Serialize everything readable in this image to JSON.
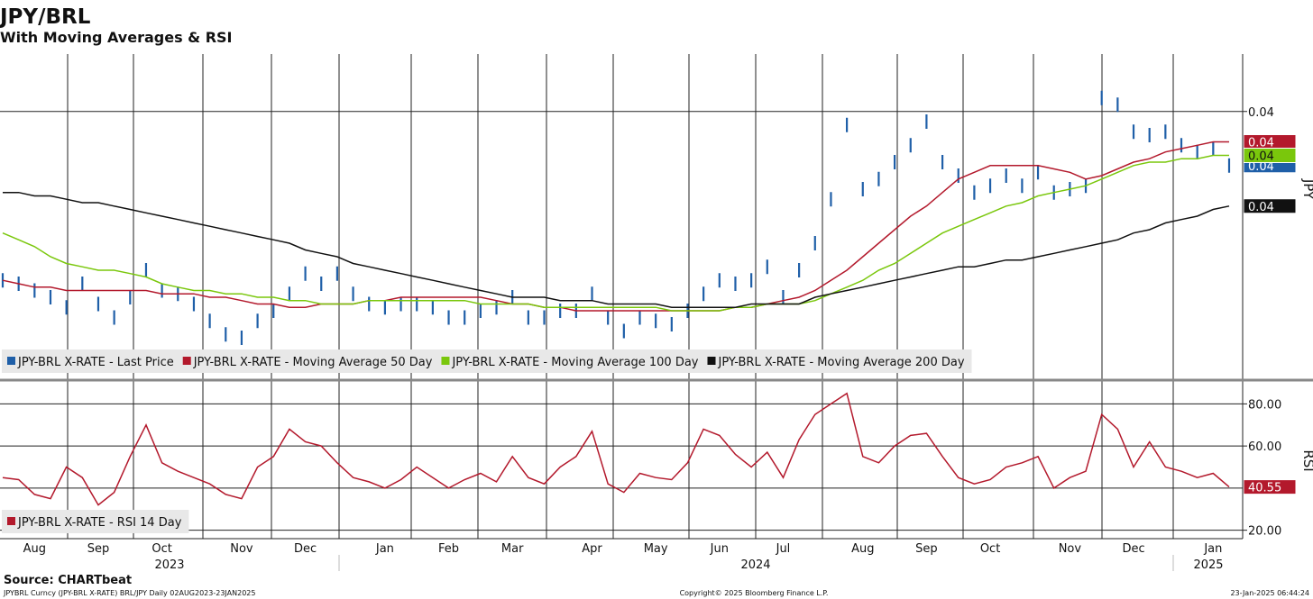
{
  "header": {
    "title": "JPY/BRL",
    "subtitle": "With Moving Averages & RSI"
  },
  "footer": {
    "source": "Source: CHARTbeat",
    "ticker": "JPYBRL Curncy (JPY-BRL X-RATE) BRL/JPY  Daily 02AUG2023-23JAN2025",
    "copyright": "Copyright© 2025 Bloomberg Finance L.P.",
    "timestamp": "23-Jan-2025 06:44:24"
  },
  "chart_data": [
    {
      "type": "line",
      "y_label": "JPY",
      "ylim": [
        0.0321,
        0.0417
      ],
      "yticks": [
        0.04
      ],
      "grid": true,
      "legend": "bottom-left",
      "series": [
        {
          "name": "JPY-BRL X-RATE - Last Price",
          "color": "#1f5fa8",
          "style": "bars",
          "end_label": "0.04",
          "values": [
            0.035,
            0.0349,
            0.0347,
            0.0345,
            0.0342,
            0.0349,
            0.0343,
            0.0339,
            0.0345,
            0.0353,
            0.0347,
            0.0346,
            0.0343,
            0.0338,
            0.0334,
            0.0333,
            0.0338,
            0.0341,
            0.0346,
            0.0352,
            0.0349,
            0.0352,
            0.0346,
            0.0343,
            0.0342,
            0.0343,
            0.0343,
            0.0342,
            0.0339,
            0.0339,
            0.0341,
            0.0342,
            0.0345,
            0.0339,
            0.0339,
            0.0341,
            0.0341,
            0.0346,
            0.0339,
            0.0335,
            0.0339,
            0.0338,
            0.0337,
            0.0341,
            0.0346,
            0.035,
            0.0349,
            0.035,
            0.0354,
            0.0345,
            0.0353,
            0.0361,
            0.0374,
            0.0396,
            0.0377,
            0.038,
            0.0385,
            0.039,
            0.0397,
            0.0385,
            0.0381,
            0.0376,
            0.0378,
            0.0381,
            0.0378,
            0.0382,
            0.0376,
            0.0377,
            0.0378,
            0.0404,
            0.0402,
            0.0394,
            0.0393,
            0.0394,
            0.039,
            0.0388,
            0.0389,
            0.0384
          ]
        },
        {
          "name": "JPY-BRL X-RATE - Moving Average 50 Day",
          "color": "#b3192c",
          "style": "line",
          "end_label": "0.04",
          "values": [
            0.035,
            0.0349,
            0.0348,
            0.0348,
            0.0347,
            0.0347,
            0.0347,
            0.0347,
            0.0347,
            0.0347,
            0.0346,
            0.0346,
            0.0346,
            0.0345,
            0.0345,
            0.0344,
            0.0343,
            0.0343,
            0.0342,
            0.0342,
            0.0343,
            0.0343,
            0.0343,
            0.0344,
            0.0344,
            0.0345,
            0.0345,
            0.0345,
            0.0345,
            0.0345,
            0.0345,
            0.0344,
            0.0343,
            0.0343,
            0.0342,
            0.0342,
            0.0341,
            0.0341,
            0.0341,
            0.0341,
            0.0341,
            0.0341,
            0.0341,
            0.0341,
            0.0341,
            0.0341,
            0.0342,
            0.0342,
            0.0343,
            0.0344,
            0.0345,
            0.0347,
            0.035,
            0.0353,
            0.0357,
            0.0361,
            0.0365,
            0.0369,
            0.0372,
            0.0376,
            0.038,
            0.0382,
            0.0384,
            0.0384,
            0.0384,
            0.0384,
            0.0383,
            0.0382,
            0.038,
            0.0381,
            0.0383,
            0.0385,
            0.0386,
            0.0388,
            0.0389,
            0.039,
            0.0391,
            0.0391
          ]
        },
        {
          "name": "JPY-BRL X-RATE - Moving Average 100 Day",
          "color": "#7ac70c",
          "style": "line",
          "end_label": "0.04",
          "values": [
            0.0364,
            0.0362,
            0.036,
            0.0357,
            0.0355,
            0.0354,
            0.0353,
            0.0353,
            0.0352,
            0.0351,
            0.0349,
            0.0348,
            0.0347,
            0.0347,
            0.0346,
            0.0346,
            0.0345,
            0.0345,
            0.0344,
            0.0344,
            0.0343,
            0.0343,
            0.0343,
            0.0344,
            0.0344,
            0.0344,
            0.0344,
            0.0344,
            0.0344,
            0.0344,
            0.0343,
            0.0343,
            0.0343,
            0.0343,
            0.0342,
            0.0342,
            0.0342,
            0.0342,
            0.0342,
            0.0342,
            0.0342,
            0.0342,
            0.0341,
            0.0341,
            0.0341,
            0.0341,
            0.0342,
            0.0342,
            0.0343,
            0.0343,
            0.0343,
            0.0344,
            0.0346,
            0.0348,
            0.035,
            0.0353,
            0.0355,
            0.0358,
            0.0361,
            0.0364,
            0.0366,
            0.0368,
            0.037,
            0.0372,
            0.0373,
            0.0375,
            0.0376,
            0.0377,
            0.0378,
            0.038,
            0.0382,
            0.0384,
            0.0385,
            0.0385,
            0.0386,
            0.0386,
            0.0387,
            0.0387
          ]
        },
        {
          "name": "JPY-BRL X-RATE - Moving Average 200 Day",
          "color": "#111111",
          "style": "line",
          "end_label": "0.04",
          "values": [
            0.0376,
            0.0376,
            0.0375,
            0.0375,
            0.0374,
            0.0373,
            0.0373,
            0.0372,
            0.0371,
            0.037,
            0.0369,
            0.0368,
            0.0367,
            0.0366,
            0.0365,
            0.0364,
            0.0363,
            0.0362,
            0.0361,
            0.0359,
            0.0358,
            0.0357,
            0.0355,
            0.0354,
            0.0353,
            0.0352,
            0.0351,
            0.035,
            0.0349,
            0.0348,
            0.0347,
            0.0346,
            0.0345,
            0.0345,
            0.0345,
            0.0344,
            0.0344,
            0.0344,
            0.0343,
            0.0343,
            0.0343,
            0.0343,
            0.0342,
            0.0342,
            0.0342,
            0.0342,
            0.0342,
            0.0343,
            0.0343,
            0.0343,
            0.0343,
            0.0345,
            0.0346,
            0.0347,
            0.0348,
            0.0349,
            0.035,
            0.0351,
            0.0352,
            0.0353,
            0.0354,
            0.0354,
            0.0355,
            0.0356,
            0.0356,
            0.0357,
            0.0358,
            0.0359,
            0.036,
            0.0361,
            0.0362,
            0.0364,
            0.0365,
            0.0367,
            0.0368,
            0.0369,
            0.0371,
            0.0372
          ]
        }
      ]
    },
    {
      "type": "line",
      "y_label": "RSI",
      "ylim": [
        16,
        90
      ],
      "grid": true,
      "legend": "bottom-left",
      "yticks": [
        {
          "value": 80,
          "label": "80.00"
        },
        {
          "value": 60,
          "label": "60.00"
        },
        {
          "value": 40,
          "label": "40.00"
        },
        {
          "value": 20,
          "label": "20.00"
        }
      ],
      "categories": [
        null,
        null,
        "Aug",
        null,
        null,
        null,
        "Sep",
        null,
        null,
        null,
        "Oct",
        null,
        null,
        null,
        null,
        "Nov",
        null,
        null,
        null,
        "Dec",
        null,
        null,
        null,
        null,
        "Jan",
        null,
        null,
        null,
        "Feb",
        null,
        null,
        null,
        "Mar",
        null,
        null,
        null,
        null,
        "Apr",
        null,
        null,
        null,
        "May",
        null,
        null,
        null,
        "Jun",
        null,
        null,
        null,
        "Jul",
        null,
        null,
        null,
        null,
        "Aug",
        null,
        null,
        null,
        "Sep",
        null,
        null,
        null,
        "Oct",
        null,
        null,
        null,
        null,
        "Nov",
        null,
        null,
        null,
        "Dec",
        null,
        null,
        null,
        null,
        "Jan",
        null
      ],
      "annotations": [
        "2023",
        "2024",
        "2025"
      ],
      "series": [
        {
          "name": "JPY-BRL X-RATE - RSI 14 Day",
          "color": "#b3192c",
          "values": [
            45,
            44,
            37,
            35,
            50,
            45,
            32,
            38,
            55,
            70,
            52,
            48,
            45,
            42,
            37,
            35,
            50,
            55,
            68,
            62,
            60,
            52,
            45,
            43,
            40,
            44,
            50,
            45,
            40,
            44,
            47,
            43,
            55,
            45,
            42,
            50,
            55,
            67,
            42,
            38,
            47,
            45,
            44,
            52,
            68,
            65,
            56,
            50,
            57,
            45,
            63,
            75,
            80,
            85,
            55,
            52,
            60,
            65,
            66,
            55,
            45,
            42,
            44,
            50,
            52,
            55,
            40,
            45,
            48,
            75,
            68,
            50,
            62,
            50,
            48,
            45,
            47,
            40.55
          ]
        }
      ]
    }
  ]
}
